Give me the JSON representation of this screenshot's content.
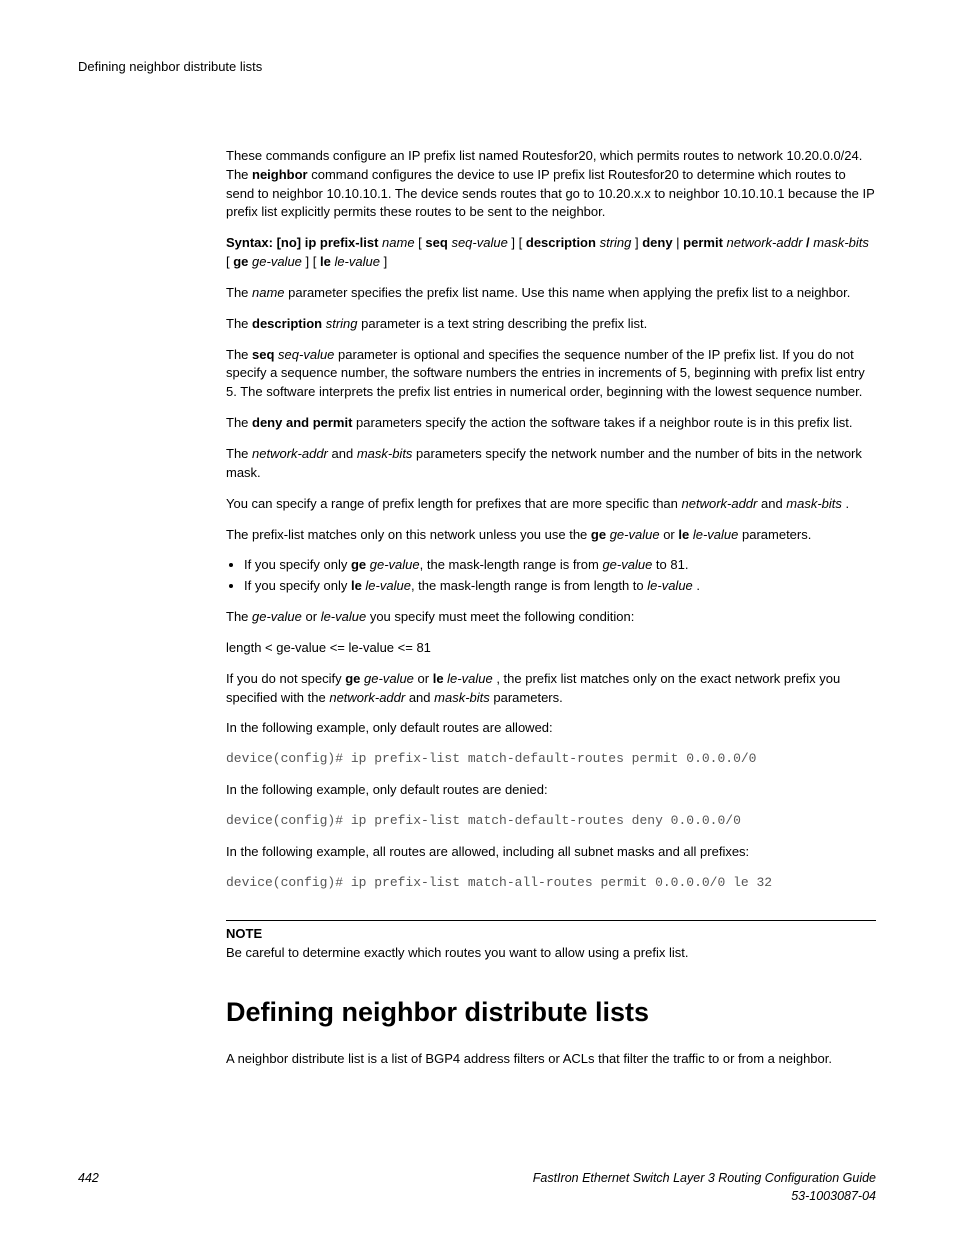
{
  "header": {
    "running_title": "Defining neighbor distribute lists"
  },
  "p_intro": "These commands configure an IP prefix list named Routesfor20, which permits routes to network 10.20.0.0/24. The ",
  "p_intro_b1": "neighbor",
  "p_intro_2": " command configures the device to use IP prefix list Routesfor20 to determine which routes to send to neighbor 10.10.10.1. The device sends routes that go to 10.20.x.x to neighbor 10.10.10.1 because the IP prefix list explicitly permits these routes to be sent to the neighbor.",
  "syntax": {
    "lead": "Syntax: [no] ip prefix-list",
    "name": "name",
    "seq_b": "seq",
    "seq_i": "seq-value",
    "desc_b": "description",
    "desc_i": "string",
    "deny": "deny",
    "permit": "permit",
    "netaddr": "network-addr",
    "slash": "/",
    "maskbits": "mask-bits",
    "ge_b": "ge",
    "ge_i": "ge-value",
    "le_b": "le",
    "le_i": "le-value"
  },
  "p_name_1": "The ",
  "p_name_i": "name",
  "p_name_2": " parameter specifies the prefix list name. Use this name when applying the prefix list to a neighbor.",
  "p_desc_1": "The ",
  "p_desc_b": "description",
  "p_desc_i": "string",
  "p_desc_2": " parameter is a text string describing the prefix list.",
  "p_seq_1": "The ",
  "p_seq_b": "seq",
  "p_seq_i": "seq-value",
  "p_seq_2": " parameter is optional and specifies the sequence number of the IP prefix list. If you do not specify a sequence number, the software numbers the entries in increments of 5, beginning with prefix list entry 5. The software interprets the prefix list entries in numerical order, beginning with the lowest sequence number.",
  "p_dp_1": "The ",
  "p_dp_b": "deny and permit",
  "p_dp_2": " parameters specify the action the software takes if a neighbor route is in this prefix list.",
  "p_nm_1": "The ",
  "p_nm_i1": "network-addr",
  "p_nm_and": " and ",
  "p_nm_i2": "mask-bits",
  "p_nm_2": " parameters specify the network number and the number of bits in the network mask.",
  "p_range_1": "You can specify a range of prefix length for prefixes that are more specific than ",
  "p_range_i1": "network-addr",
  "p_range_and": " and ",
  "p_range_i2": "mask-bits",
  "p_range_2": " .",
  "p_match_1": "The prefix-list matches only on this network unless you use the ",
  "p_match_b1": "ge",
  "p_match_i1": "ge-value",
  "p_match_or": " or ",
  "p_match_b2": "le",
  "p_match_i2": "le-value",
  "p_match_2": " parameters.",
  "bul1_1": "If you specify only ",
  "bul1_b": "ge",
  "bul1_i": "ge-value",
  "bul1_2": ", the mask-length range is from ",
  "bul1_i2": "ge-value",
  "bul1_3": " to 81.",
  "bul2_1": "If you specify only ",
  "bul2_b": "le",
  "bul2_i": "le-value",
  "bul2_2": ", the mask-length range is from length to ",
  "bul2_i2": "le-value",
  "bul2_3": " .",
  "p_cond_1": "The ",
  "p_cond_i1": "ge-value",
  "p_cond_or": " or ",
  "p_cond_i2": "le-value",
  "p_cond_2": " you specify must meet the following condition:",
  "p_ineq": "length < ge-value <= le-value <= 81",
  "p_nogele_1": "If you do not specify ",
  "p_nogele_b1": "ge",
  "p_nogele_i1": "ge-value",
  "p_nogele_or": " or ",
  "p_nogele_b2": "le",
  "p_nogele_i2": "le-value",
  "p_nogele_2": " , the prefix list matches only on the exact network prefix you specified with the ",
  "p_nogele_i3": "network-addr",
  "p_nogele_and": " and ",
  "p_nogele_i4": "mask-bits",
  "p_nogele_3": " parameters.",
  "p_ex1": "In the following example, only default routes are allowed:",
  "code1": "device(config)# ip prefix-list match-default-routes permit 0.0.0.0/0",
  "p_ex2": "In the following example, only default routes are denied:",
  "code2": "device(config)# ip prefix-list match-default-routes deny 0.0.0.0/0",
  "p_ex3": "In the following example, all routes are allowed, including all subnet masks and all prefixes:",
  "code3": "device(config)# ip prefix-list match-all-routes permit 0.0.0.0/0 le 32",
  "note": {
    "label": "NOTE",
    "body": "Be careful to determine exactly which routes you want to allow using a prefix list."
  },
  "section_title": "Defining neighbor distribute lists",
  "p_section": "A neighbor distribute list is a list of BGP4 address filters or ACLs that filter the traffic to or from a neighbor.",
  "footer": {
    "page": "442",
    "title": "FastIron Ethernet Switch Layer 3 Routing Configuration Guide",
    "docnum": "53-1003087-04"
  }
}
